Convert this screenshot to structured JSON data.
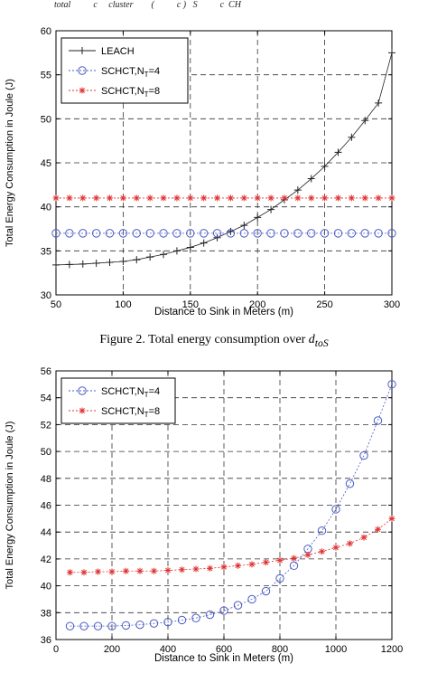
{
  "top_fragment": "total          c     cluster        (          c )   S          c  CH",
  "captions": [
    {
      "prefix": "Figure 2. Total energy consumption over ",
      "symbol": "d",
      "subscript": "toS"
    }
  ],
  "chart_data": [
    {
      "type": "line",
      "title": "",
      "xlabel": "Distance to Sink in Meters (m)",
      "ylabel": "Total Energy Consumption in Joule (J)",
      "xlim": [
        50,
        300
      ],
      "ylim": [
        30,
        60
      ],
      "xticks": [
        50,
        100,
        150,
        200,
        250,
        300
      ],
      "yticks": [
        30,
        35,
        40,
        45,
        50,
        55,
        60
      ],
      "grid": true,
      "legend_position": "top-left",
      "series": [
        {
          "name": "LEACH",
          "color": "#222222",
          "marker": "plus",
          "x": [
            50,
            60,
            70,
            80,
            90,
            100,
            110,
            120,
            130,
            140,
            150,
            160,
            170,
            180,
            190,
            200,
            210,
            220,
            230,
            240,
            250,
            260,
            270,
            280,
            290,
            300
          ],
          "y": [
            33.4,
            33.45,
            33.5,
            33.6,
            33.7,
            33.8,
            34.0,
            34.3,
            34.6,
            35.0,
            35.4,
            35.9,
            36.5,
            37.2,
            37.9,
            38.8,
            39.7,
            40.8,
            41.9,
            43.2,
            44.6,
            46.2,
            47.9,
            49.8,
            51.8,
            57.5
          ]
        },
        {
          "name": "SCHCT,N",
          "name_sub": "T",
          "name_suffix": "=4",
          "color": "#4a5bc4",
          "marker": "circle",
          "x": [
            50,
            60,
            70,
            80,
            90,
            100,
            110,
            120,
            130,
            140,
            150,
            160,
            170,
            180,
            190,
            200,
            210,
            220,
            230,
            240,
            250,
            260,
            270,
            280,
            290,
            300
          ],
          "y": [
            37,
            37,
            37,
            37,
            37,
            37,
            37,
            37,
            37,
            37,
            37,
            37,
            37,
            37,
            37,
            37,
            37,
            37,
            37,
            37,
            37,
            37,
            37,
            37,
            37,
            37
          ]
        },
        {
          "name": "SCHCT,N",
          "name_sub": "T",
          "name_suffix": "=8",
          "color": "#e03030",
          "marker": "star",
          "x": [
            50,
            60,
            70,
            80,
            90,
            100,
            110,
            120,
            130,
            140,
            150,
            160,
            170,
            180,
            190,
            200,
            210,
            220,
            230,
            240,
            250,
            260,
            270,
            280,
            290,
            300
          ],
          "y": [
            41,
            41,
            41,
            41,
            41,
            41,
            41,
            41,
            41,
            41,
            41,
            41,
            41,
            41,
            41,
            41,
            41,
            41,
            41,
            41,
            41,
            41,
            41,
            41,
            41,
            41
          ]
        }
      ]
    },
    {
      "type": "line",
      "title": "",
      "xlabel": "Distance to Sink in Meters (m)",
      "ylabel": "Total Energy Consumption in Joule (J)",
      "xlim": [
        0,
        1200
      ],
      "ylim": [
        36,
        56
      ],
      "xticks": [
        0,
        200,
        400,
        600,
        800,
        1000,
        1200
      ],
      "yticks": [
        36,
        38,
        40,
        42,
        44,
        46,
        48,
        50,
        52,
        54,
        56
      ],
      "grid": true,
      "legend_position": "top-left",
      "series": [
        {
          "name": "SCHCT,N",
          "name_sub": "T",
          "name_suffix": "=4",
          "color": "#4a5bc4",
          "marker": "circle",
          "x": [
            50,
            100,
            150,
            200,
            250,
            300,
            350,
            400,
            450,
            500,
            550,
            600,
            650,
            700,
            750,
            800,
            850,
            900,
            950,
            1000,
            1050,
            1100,
            1150,
            1200
          ],
          "y": [
            37.0,
            37.0,
            37.0,
            37.0,
            37.05,
            37.1,
            37.2,
            37.3,
            37.45,
            37.6,
            37.85,
            38.15,
            38.55,
            39.0,
            39.6,
            40.55,
            41.5,
            42.75,
            44.1,
            45.7,
            47.6,
            49.7,
            52.3,
            55.0
          ]
        },
        {
          "name": "SCHCT,N",
          "name_sub": "T",
          "name_suffix": "=8",
          "color": "#e03030",
          "marker": "star",
          "x": [
            50,
            100,
            150,
            200,
            250,
            300,
            350,
            400,
            450,
            500,
            550,
            600,
            650,
            700,
            750,
            800,
            850,
            900,
            950,
            1000,
            1050,
            1100,
            1150,
            1200
          ],
          "y": [
            41.0,
            41.0,
            41.05,
            41.05,
            41.1,
            41.1,
            41.1,
            41.15,
            41.2,
            41.25,
            41.3,
            41.4,
            41.5,
            41.6,
            41.75,
            41.9,
            42.05,
            42.3,
            42.55,
            42.85,
            43.15,
            43.6,
            44.2,
            45.0
          ]
        }
      ]
    }
  ]
}
